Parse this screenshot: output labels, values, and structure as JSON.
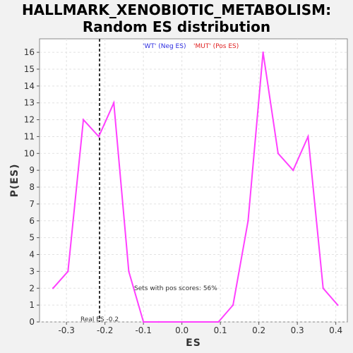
{
  "title_line1": "HALLMARK_XENOBIOTIC_METABOLISM:",
  "title_line2": "Random ES distribution",
  "legend": {
    "neg_label": "'WT' (Neg ES)",
    "pos_label": "'MUT' (Pos ES)",
    "neg_color": "#2d2de0",
    "pos_color": "#e02020"
  },
  "chart_data": {
    "type": "line",
    "xlabel": "ES",
    "ylabel": "P(ES)",
    "xlim": [
      -0.37,
      0.43
    ],
    "ylim": [
      0,
      16.8
    ],
    "x_ticks": [
      -0.3,
      -0.2,
      -0.1,
      0.0,
      0.1,
      0.2,
      0.3,
      0.4
    ],
    "x_tick_labels": [
      "-0.3",
      "-0.2",
      "-0.1",
      "0.0",
      "0.1",
      "0.2",
      "0.3",
      "0.4"
    ],
    "y_ticks": [
      0,
      1,
      2,
      3,
      4,
      5,
      6,
      7,
      8,
      9,
      10,
      11,
      12,
      13,
      14,
      15,
      16
    ],
    "y_tick_labels": [
      "0",
      "1",
      "2",
      "3",
      "4",
      "5",
      "6",
      "7",
      "8",
      "9",
      "10",
      "11",
      "12",
      "13",
      "14",
      "15",
      "16"
    ],
    "grid": true,
    "series": [
      {
        "color": "#ff40ff",
        "x": [
          -0.335,
          -0.296,
          -0.256,
          -0.216,
          -0.177,
          -0.138,
          -0.1,
          -0.06,
          0.095,
          0.133,
          0.172,
          0.211,
          0.25,
          0.289,
          0.328,
          0.367,
          0.405
        ],
        "y": [
          2,
          3,
          12,
          11,
          13,
          3,
          0,
          0,
          0,
          1,
          6,
          16,
          10,
          9,
          11,
          2,
          1
        ]
      }
    ],
    "real_es": {
      "x": -0.214,
      "label": "Real ES -0.2",
      "color": "#333333"
    },
    "annotation": "Sets with pos scores: 56%"
  }
}
